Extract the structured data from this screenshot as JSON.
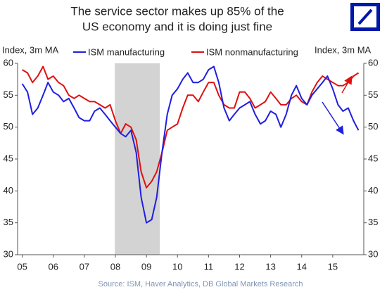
{
  "chart_data": {
    "type": "line",
    "title_lines": [
      "The service sector makes up 85% of the",
      "US economy and it is doing just fine"
    ],
    "y_label": "Index, 3m MA",
    "y2_label": "Index, 3m MA",
    "source": "Source: ISM, Haver Analytics, DB Global Markets Research",
    "x": [
      2005.0,
      2005.17,
      2005.33,
      2005.5,
      2005.67,
      2005.83,
      2006.0,
      2006.17,
      2006.33,
      2006.5,
      2006.67,
      2006.83,
      2007.0,
      2007.17,
      2007.33,
      2007.5,
      2007.67,
      2007.83,
      2008.0,
      2008.17,
      2008.33,
      2008.5,
      2008.67,
      2008.83,
      2009.0,
      2009.17,
      2009.33,
      2009.5,
      2009.67,
      2009.83,
      2010.0,
      2010.17,
      2010.33,
      2010.5,
      2010.67,
      2010.83,
      2011.0,
      2011.17,
      2011.33,
      2011.5,
      2011.67,
      2011.83,
      2012.0,
      2012.17,
      2012.33,
      2012.5,
      2012.67,
      2012.83,
      2013.0,
      2013.17,
      2013.33,
      2013.5,
      2013.67,
      2013.83,
      2014.0,
      2014.17,
      2014.33,
      2014.5,
      2014.67,
      2014.83,
      2015.0,
      2015.17,
      2015.33,
      2015.5,
      2015.67,
      2015.83
    ],
    "series": [
      {
        "name": "ISM manufacturing",
        "color": "#1f1fe0",
        "values": [
          56.8,
          55.5,
          52,
          53,
          55,
          57,
          55.5,
          55,
          54,
          54.5,
          53,
          51.5,
          51,
          51,
          52.5,
          53,
          52,
          51,
          50,
          49,
          48.5,
          49.5,
          46,
          39,
          35,
          35.5,
          39,
          46,
          52,
          55,
          56,
          57.5,
          58.5,
          57,
          57,
          57.5,
          59,
          59.5,
          57,
          53,
          51,
          52,
          53,
          53.5,
          54,
          52,
          50.5,
          51,
          52.5,
          52,
          50,
          52,
          55,
          56.5,
          54.5,
          53.5,
          55,
          56,
          57,
          58,
          56,
          53.5,
          52.5,
          53,
          51,
          49.5
        ]
      },
      {
        "name": "ISM nonmanufacturing",
        "color": "#e01010",
        "values": [
          59,
          58.5,
          57,
          58,
          59.5,
          57.5,
          58,
          57,
          56.5,
          55,
          54.5,
          55,
          54.5,
          54,
          54,
          53.5,
          53,
          53.5,
          51,
          49,
          50.5,
          50,
          48,
          43,
          40.5,
          41.5,
          43,
          46,
          49.5,
          50,
          50.5,
          53,
          55,
          55,
          54,
          55.5,
          57,
          57,
          55,
          53.5,
          53,
          53,
          55.5,
          55.5,
          54.5,
          53,
          53.5,
          54,
          55.5,
          54.5,
          53.5,
          53.5,
          54.5,
          55,
          54,
          53.5,
          55.5,
          57,
          58,
          57.5,
          57,
          56.5,
          56.5,
          57,
          58,
          58.5
        ]
      }
    ],
    "recession": [
      2007.98,
      2009.43
    ],
    "xlim": [
      2004.85,
      2016.0
    ],
    "xticks": [
      {
        "value": 2005,
        "label": "05"
      },
      {
        "value": 2006,
        "label": "06"
      },
      {
        "value": 2007,
        "label": "07"
      },
      {
        "value": 2008,
        "label": "08"
      },
      {
        "value": 2009,
        "label": "09"
      },
      {
        "value": 2010,
        "label": "10"
      },
      {
        "value": 2011,
        "label": "11"
      },
      {
        "value": 2012,
        "label": "12"
      },
      {
        "value": 2013,
        "label": "13"
      },
      {
        "value": 2014,
        "label": "14"
      },
      {
        "value": 2015,
        "label": "15"
      }
    ],
    "ylim": [
      30,
      60
    ],
    "yticks": [
      30,
      35,
      40,
      45,
      50,
      55,
      60
    ],
    "y2lim": [
      30,
      60
    ],
    "y2ticks": [
      30,
      35,
      40,
      45,
      50,
      55,
      60
    ]
  }
}
